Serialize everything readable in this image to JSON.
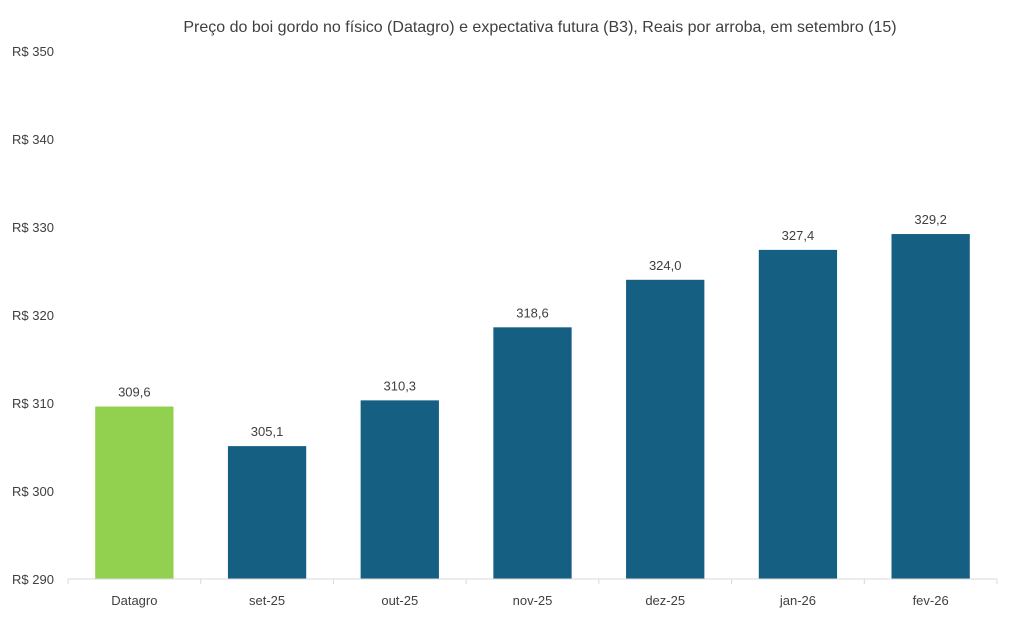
{
  "chart_data": {
    "type": "bar",
    "title": "Preço do boi gordo no físico (Datagro)  e expectativa futura (B3), Reais por arroba, em setembro (15)",
    "xlabel": "",
    "ylabel": "",
    "ylim": [
      290,
      350
    ],
    "y_ticks": [
      290,
      300,
      310,
      320,
      330,
      340,
      350
    ],
    "y_tick_labels": [
      "R$ 290",
      "R$ 300",
      "R$ 310",
      "R$ 320",
      "R$ 330",
      "R$ 340",
      "R$ 350"
    ],
    "grid": false,
    "legend": "none",
    "categories": [
      "Datagro",
      "set-25",
      "out-25",
      "nov-25",
      "dez-25",
      "jan-26",
      "fev-26"
    ],
    "values": [
      309.6,
      305.1,
      310.3,
      318.6,
      324.0,
      327.4,
      329.2
    ],
    "value_labels": [
      "309,6",
      "305,1",
      "310,3",
      "318,6",
      "324,0",
      "327,4",
      "329,2"
    ],
    "colors": [
      "#92d050",
      "#156082",
      "#156082",
      "#156082",
      "#156082",
      "#156082",
      "#156082"
    ]
  }
}
